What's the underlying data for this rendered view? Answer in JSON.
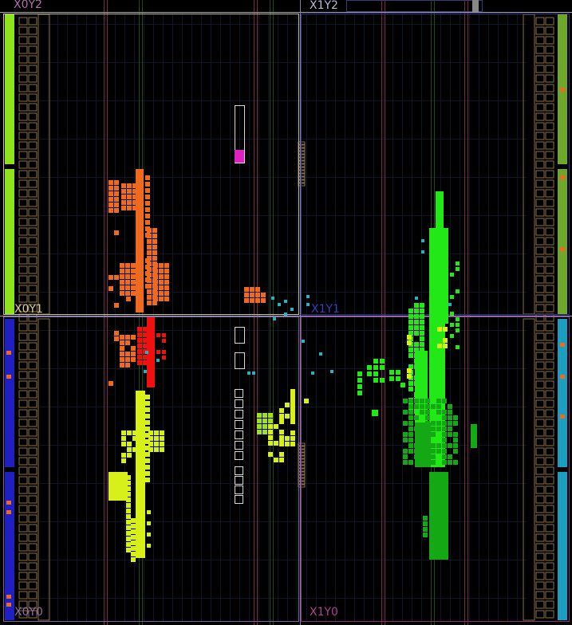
{
  "device_view": {
    "clock_regions": [
      {
        "id": "X0Y2",
        "label": "X0Y2",
        "color": "#b06fb0"
      },
      {
        "id": "X1Y2",
        "label": "X1Y2",
        "color": "#b8b8d8"
      },
      {
        "id": "X0Y1",
        "label": "X0Y1",
        "color": "#d0c8a0"
      },
      {
        "id": "X1Y1",
        "label": "X1Y1",
        "color": "#3a3ac0"
      },
      {
        "id": "X0Y0",
        "label": "X0Y0",
        "color": "#8a6aa8"
      },
      {
        "id": "X1Y0",
        "label": "X1Y0",
        "color": "#b04090"
      }
    ],
    "colors": {
      "background": "#000000",
      "region_border_top_left": "#a6a6a6",
      "region_border_left": "#c8c0a0",
      "region_border_right": "#4040c0",
      "site_outline": "#8a7040",
      "bram_column": "#7a2a40",
      "dsp_column": "#1f4a1f",
      "grid_line": "#1a2a3a",
      "io_left_top": "#8ee21e",
      "io_left_bottom": "#2020c0",
      "io_right_top": "#6ea82a",
      "io_right_bottom": "#1c9ec0",
      "cluster_orange": "#ef6a1e",
      "cluster_red": "#f01010",
      "cluster_yellow": "#d8f01a",
      "cluster_green_bright": "#22e818",
      "cluster_green_dark": "#14a814",
      "cluster_lime": "#a0e020",
      "cluster_cyan": "#2cb0c0",
      "pblock_magenta": "#e020c0",
      "pblock_outline": "#d8d8d8"
    },
    "icons": [
      "clock-region-icon",
      "io-bank-icon",
      "pblock-icon"
    ]
  }
}
